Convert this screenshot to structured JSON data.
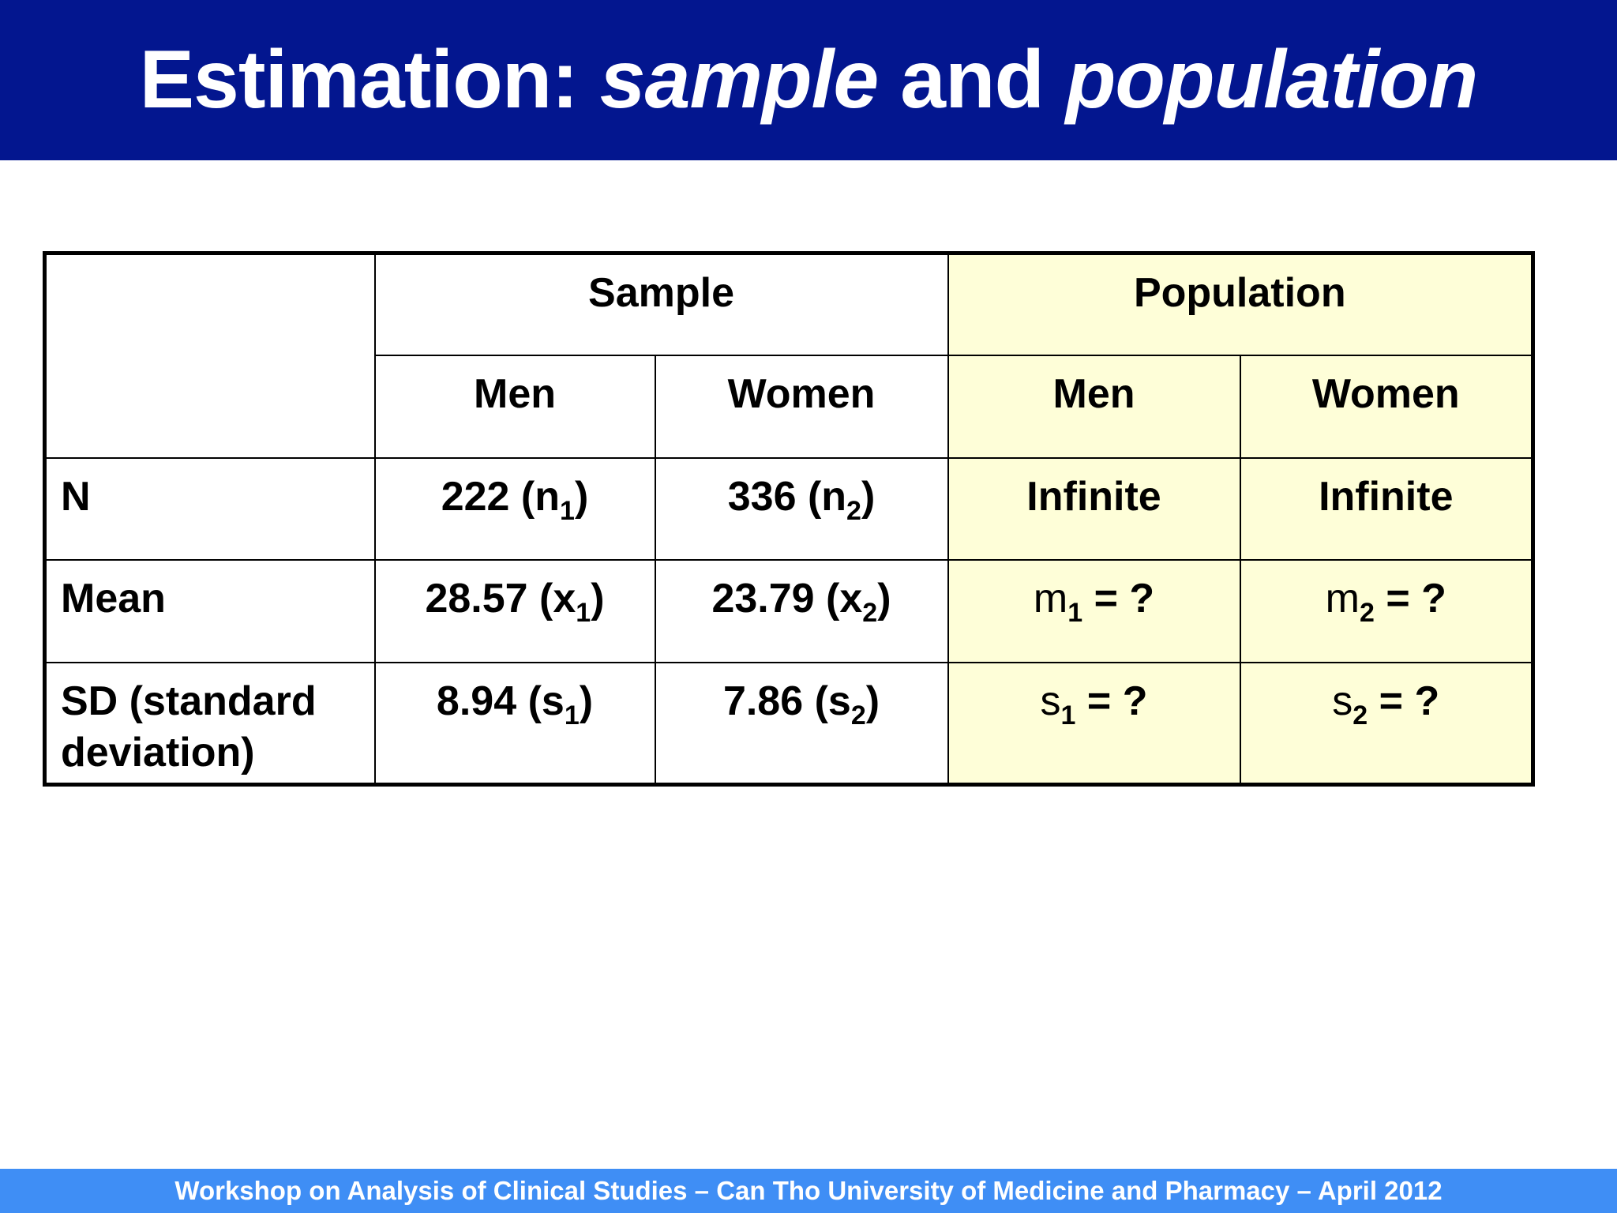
{
  "slide": {
    "title_part1": "Estimation: ",
    "title_italic1": "sample",
    "title_part2": " and ",
    "title_italic2": "population",
    "footer": "Workshop on Analysis of Clinical Studies – Can Tho University of Medicine and Pharmacy – April 2012",
    "colors": {
      "title_bar": "#03168f",
      "footer_bar": "#3f8ef5",
      "population_bg": "#fefed8"
    }
  },
  "table": {
    "group_headers": {
      "sample": "Sample",
      "population": "Population"
    },
    "sub_headers": {
      "sample_men": "Men",
      "sample_women": "Women",
      "pop_men": "Men",
      "pop_women": "Women"
    },
    "rows": {
      "n": {
        "label": "N",
        "sample_men": {
          "value": "222 (n",
          "sub": "1",
          "close": ")"
        },
        "sample_women": {
          "value": "336 (n",
          "sub": "2",
          "close": ")"
        },
        "pop_men": "Infinite",
        "pop_women": "Infinite"
      },
      "mean": {
        "label": "Mean",
        "sample_men": {
          "value": "28.57 (x",
          "sub": "1",
          "close": ")"
        },
        "sample_women": {
          "value": "23.79 (x",
          "sub": "2",
          "close": ")"
        },
        "pop_men": {
          "symbol": "m",
          "sub": "1",
          "rest": " = ?"
        },
        "pop_women": {
          "symbol": "m",
          "sub": "2",
          "rest": " = ?"
        }
      },
      "sd": {
        "label": "SD (standard deviation)",
        "sample_men": {
          "value": "8.94 (s",
          "sub": "1",
          "close": ")"
        },
        "sample_women": {
          "value": "7.86 (s",
          "sub": "2",
          "close": ")"
        },
        "pop_men": {
          "symbol": "s",
          "sub": "1",
          "rest": " = ?"
        },
        "pop_women": {
          "symbol": "s",
          "sub": "2",
          "rest": " = ?"
        }
      }
    }
  }
}
